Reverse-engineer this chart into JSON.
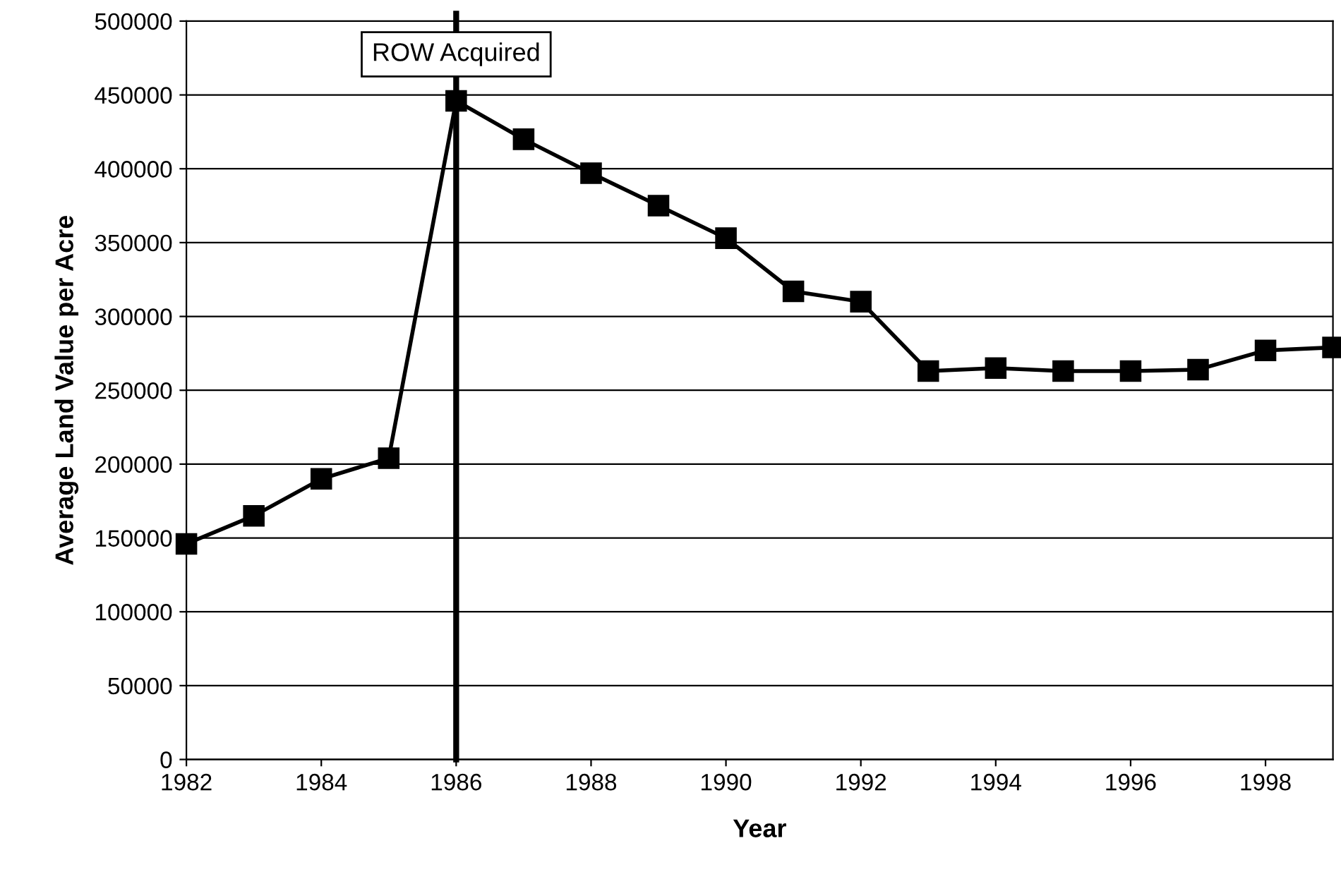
{
  "chart_data": {
    "type": "line",
    "xlabel": "Year",
    "ylabel": "Average Land Value per Acre",
    "x": [
      1982,
      1983,
      1984,
      1985,
      1986,
      1987,
      1988,
      1989,
      1990,
      1991,
      1992,
      1993,
      1994,
      1995,
      1996,
      1997,
      1998,
      1999
    ],
    "series": [
      {
        "color": "#000000",
        "values": [
          146000,
          165000,
          190000,
          204000,
          446000,
          420000,
          397000,
          375000,
          353000,
          317000,
          310000,
          263000,
          265000,
          263000,
          263000,
          264000,
          277000,
          279000
        ]
      }
    ],
    "xlim": [
      1982,
      1999
    ],
    "xticks": [
      1982,
      1984,
      1986,
      1988,
      1990,
      1992,
      1994,
      1996,
      1998
    ],
    "ylim": [
      0,
      500000
    ],
    "yticks": [
      0,
      50000,
      100000,
      150000,
      200000,
      250000,
      300000,
      350000,
      400000,
      450000,
      500000
    ],
    "ref_lines": [
      {
        "axis": "x",
        "value": 1986,
        "label": "ROW Acquired",
        "color": "#000000"
      }
    ],
    "grid": "y",
    "marker": "square",
    "line_style": "solid",
    "legend": false
  }
}
